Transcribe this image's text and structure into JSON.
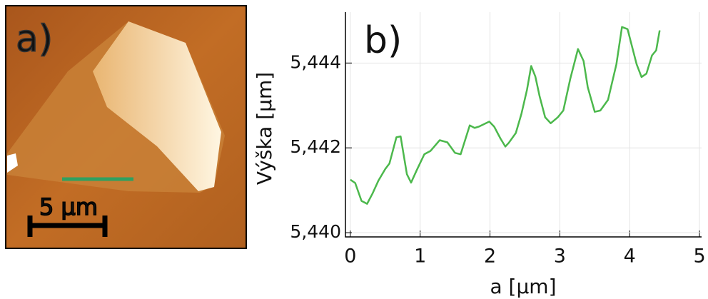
{
  "image_panel": {
    "label": "a)",
    "scale_bar": "5 µm"
  },
  "chart_data": {
    "type": "line",
    "panel_label": "b)",
    "x_label": "a [µm]",
    "y_label": "Výška [µm]",
    "xlim": [
      -0.07,
      5.03
    ],
    "xticks": [
      0,
      1,
      2,
      3,
      4,
      5
    ],
    "ylim": [
      5.4399,
      5.4452
    ],
    "yticks": [
      {
        "value": 5.44,
        "label": "5,440"
      },
      {
        "value": 5.442,
        "label": "5,442"
      },
      {
        "value": 5.444,
        "label": "5,444"
      }
    ],
    "grid": true,
    "x": [
      0.0,
      0.07,
      0.16,
      0.24,
      0.32,
      0.4,
      0.5,
      0.56,
      0.66,
      0.72,
      0.81,
      0.87,
      0.95,
      1.06,
      1.15,
      1.28,
      1.39,
      1.5,
      1.58,
      1.71,
      1.78,
      1.84,
      1.99,
      2.06,
      2.15,
      2.22,
      2.27,
      2.37,
      2.45,
      2.53,
      2.59,
      2.65,
      2.71,
      2.79,
      2.87,
      2.97,
      3.05,
      3.15,
      3.26,
      3.34,
      3.4,
      3.5,
      3.58,
      3.69,
      3.81,
      3.89,
      3.97,
      4.1,
      4.17,
      4.24,
      4.32,
      4.38,
      4.43
    ],
    "series": [
      {
        "color": "#4cb84c",
        "values": [
          5.44125,
          5.44117,
          5.44075,
          5.44068,
          5.44093,
          5.44122,
          5.4415,
          5.44163,
          5.44225,
          5.44227,
          5.44138,
          5.44118,
          5.44147,
          5.44185,
          5.44193,
          5.44218,
          5.44213,
          5.44188,
          5.44185,
          5.44253,
          5.44247,
          5.4425,
          5.44262,
          5.4425,
          5.44222,
          5.44203,
          5.44212,
          5.44235,
          5.4428,
          5.44337,
          5.44393,
          5.44368,
          5.44322,
          5.44272,
          5.44258,
          5.44272,
          5.44288,
          5.44363,
          5.44433,
          5.44405,
          5.44343,
          5.44285,
          5.44288,
          5.44313,
          5.44397,
          5.44485,
          5.4448,
          5.44397,
          5.44367,
          5.44375,
          5.44418,
          5.4443,
          5.44477
        ]
      }
    ]
  }
}
